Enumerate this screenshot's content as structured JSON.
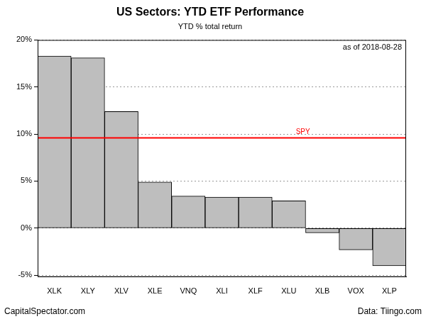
{
  "chart_data": {
    "type": "bar",
    "title": "US Sectors: YTD ETF Performance",
    "subtitle": "YTD % total return",
    "date_note": "as of 2018-08-28",
    "categories": [
      "XLK",
      "XLY",
      "XLV",
      "XLE",
      "VNQ",
      "XLI",
      "XLF",
      "XLU",
      "XLB",
      "VOX",
      "XLP"
    ],
    "values": [
      18.3,
      18.1,
      12.4,
      4.9,
      3.4,
      3.3,
      3.3,
      2.9,
      -0.5,
      -2.3,
      -4.0
    ],
    "color": "#bebebe",
    "ylim": [
      -5.2,
      20
    ],
    "yticks": [
      {
        "value": -5,
        "label": "-5%"
      },
      {
        "value": 0,
        "label": "0%"
      },
      {
        "value": 5,
        "label": "5%"
      },
      {
        "value": 10,
        "label": "10%"
      },
      {
        "value": 15,
        "label": "15%"
      },
      {
        "value": 20,
        "label": "20%"
      }
    ],
    "grid": true,
    "reference_line": {
      "name": "SPY",
      "value": 9.6,
      "color": "#ff0000"
    },
    "source_left": "CapitalSpectator.com",
    "source_right": "Data: Tiingo.com"
  }
}
